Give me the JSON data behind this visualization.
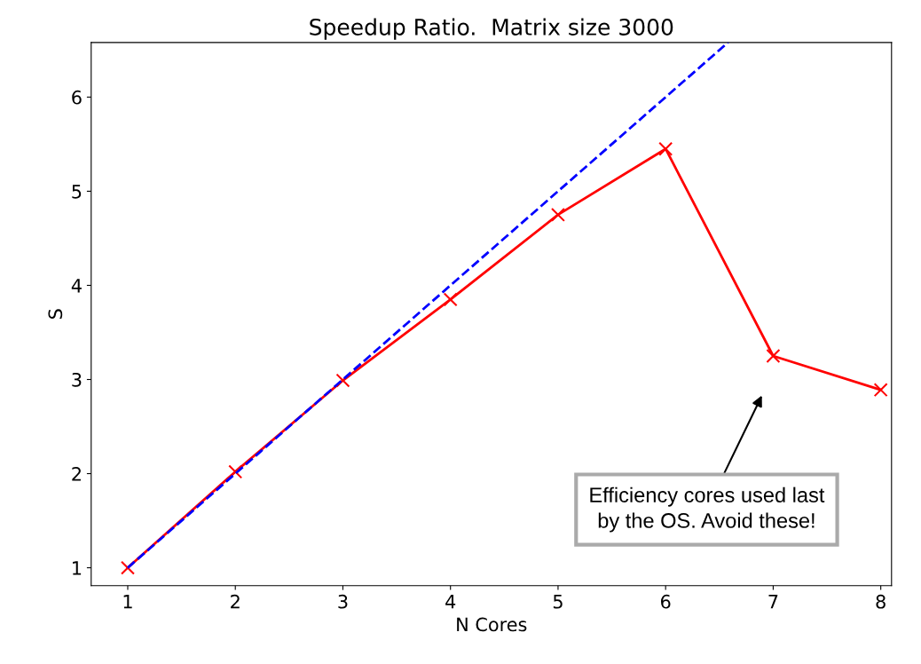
{
  "chart_data": {
    "type": "line",
    "title": "Speedup Ratio.  Matrix size 3000",
    "xlabel": "N Cores",
    "ylabel": "S",
    "series": [
      {
        "color": "#0000ff",
        "line_style": "dashed",
        "marker": "none",
        "x": [
          1,
          6.58
        ],
        "values": [
          1,
          6.58
        ]
      },
      {
        "color": "#ff0000",
        "line_style": "solid",
        "marker": "cross",
        "x": [
          1,
          2,
          3,
          4,
          5,
          6,
          7,
          8
        ],
        "values": [
          1,
          2.02,
          2.99,
          3.85,
          4.75,
          5.45,
          3.25,
          2.89
        ]
      }
    ],
    "xlim": [
      0.66,
      8.1
    ],
    "ylim": [
      0.81,
      6.58
    ],
    "xticks": [
      1,
      2,
      3,
      4,
      5,
      6,
      7,
      8
    ],
    "yticks": [
      1,
      2,
      3,
      4,
      5,
      6
    ],
    "grid": false,
    "annotations": [
      "Efficiency cores used last\nby the OS. Avoid these!"
    ]
  }
}
